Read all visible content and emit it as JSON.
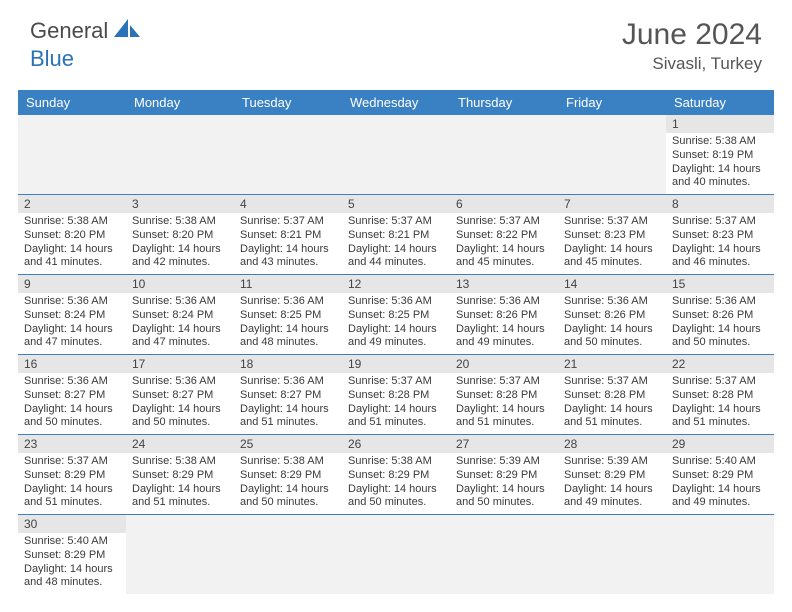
{
  "logo": {
    "text1": "General",
    "text2": "Blue"
  },
  "title": "June 2024",
  "location": "Sivasli, Turkey",
  "colors": {
    "header_bar": "#3a81c4",
    "daynum_bg": "#e6e6e6",
    "empty_bg": "#f2f2f2",
    "week_border": "#3a81c4",
    "logo_blue": "#2b72b8",
    "text": "#3a3a3a"
  },
  "daynames": [
    "Sunday",
    "Monday",
    "Tuesday",
    "Wednesday",
    "Thursday",
    "Friday",
    "Saturday"
  ],
  "weeks": [
    [
      {
        "empty": true
      },
      {
        "empty": true
      },
      {
        "empty": true
      },
      {
        "empty": true
      },
      {
        "empty": true
      },
      {
        "empty": true
      },
      {
        "num": "1",
        "sunrise": "Sunrise: 5:38 AM",
        "sunset": "Sunset: 8:19 PM",
        "day1": "Daylight: 14 hours",
        "day2": "and 40 minutes."
      }
    ],
    [
      {
        "num": "2",
        "sunrise": "Sunrise: 5:38 AM",
        "sunset": "Sunset: 8:20 PM",
        "day1": "Daylight: 14 hours",
        "day2": "and 41 minutes."
      },
      {
        "num": "3",
        "sunrise": "Sunrise: 5:38 AM",
        "sunset": "Sunset: 8:20 PM",
        "day1": "Daylight: 14 hours",
        "day2": "and 42 minutes."
      },
      {
        "num": "4",
        "sunrise": "Sunrise: 5:37 AM",
        "sunset": "Sunset: 8:21 PM",
        "day1": "Daylight: 14 hours",
        "day2": "and 43 minutes."
      },
      {
        "num": "5",
        "sunrise": "Sunrise: 5:37 AM",
        "sunset": "Sunset: 8:21 PM",
        "day1": "Daylight: 14 hours",
        "day2": "and 44 minutes."
      },
      {
        "num": "6",
        "sunrise": "Sunrise: 5:37 AM",
        "sunset": "Sunset: 8:22 PM",
        "day1": "Daylight: 14 hours",
        "day2": "and 45 minutes."
      },
      {
        "num": "7",
        "sunrise": "Sunrise: 5:37 AM",
        "sunset": "Sunset: 8:23 PM",
        "day1": "Daylight: 14 hours",
        "day2": "and 45 minutes."
      },
      {
        "num": "8",
        "sunrise": "Sunrise: 5:37 AM",
        "sunset": "Sunset: 8:23 PM",
        "day1": "Daylight: 14 hours",
        "day2": "and 46 minutes."
      }
    ],
    [
      {
        "num": "9",
        "sunrise": "Sunrise: 5:36 AM",
        "sunset": "Sunset: 8:24 PM",
        "day1": "Daylight: 14 hours",
        "day2": "and 47 minutes."
      },
      {
        "num": "10",
        "sunrise": "Sunrise: 5:36 AM",
        "sunset": "Sunset: 8:24 PM",
        "day1": "Daylight: 14 hours",
        "day2": "and 47 minutes."
      },
      {
        "num": "11",
        "sunrise": "Sunrise: 5:36 AM",
        "sunset": "Sunset: 8:25 PM",
        "day1": "Daylight: 14 hours",
        "day2": "and 48 minutes."
      },
      {
        "num": "12",
        "sunrise": "Sunrise: 5:36 AM",
        "sunset": "Sunset: 8:25 PM",
        "day1": "Daylight: 14 hours",
        "day2": "and 49 minutes."
      },
      {
        "num": "13",
        "sunrise": "Sunrise: 5:36 AM",
        "sunset": "Sunset: 8:26 PM",
        "day1": "Daylight: 14 hours",
        "day2": "and 49 minutes."
      },
      {
        "num": "14",
        "sunrise": "Sunrise: 5:36 AM",
        "sunset": "Sunset: 8:26 PM",
        "day1": "Daylight: 14 hours",
        "day2": "and 50 minutes."
      },
      {
        "num": "15",
        "sunrise": "Sunrise: 5:36 AM",
        "sunset": "Sunset: 8:26 PM",
        "day1": "Daylight: 14 hours",
        "day2": "and 50 minutes."
      }
    ],
    [
      {
        "num": "16",
        "sunrise": "Sunrise: 5:36 AM",
        "sunset": "Sunset: 8:27 PM",
        "day1": "Daylight: 14 hours",
        "day2": "and 50 minutes."
      },
      {
        "num": "17",
        "sunrise": "Sunrise: 5:36 AM",
        "sunset": "Sunset: 8:27 PM",
        "day1": "Daylight: 14 hours",
        "day2": "and 50 minutes."
      },
      {
        "num": "18",
        "sunrise": "Sunrise: 5:36 AM",
        "sunset": "Sunset: 8:27 PM",
        "day1": "Daylight: 14 hours",
        "day2": "and 51 minutes."
      },
      {
        "num": "19",
        "sunrise": "Sunrise: 5:37 AM",
        "sunset": "Sunset: 8:28 PM",
        "day1": "Daylight: 14 hours",
        "day2": "and 51 minutes."
      },
      {
        "num": "20",
        "sunrise": "Sunrise: 5:37 AM",
        "sunset": "Sunset: 8:28 PM",
        "day1": "Daylight: 14 hours",
        "day2": "and 51 minutes."
      },
      {
        "num": "21",
        "sunrise": "Sunrise: 5:37 AM",
        "sunset": "Sunset: 8:28 PM",
        "day1": "Daylight: 14 hours",
        "day2": "and 51 minutes."
      },
      {
        "num": "22",
        "sunrise": "Sunrise: 5:37 AM",
        "sunset": "Sunset: 8:28 PM",
        "day1": "Daylight: 14 hours",
        "day2": "and 51 minutes."
      }
    ],
    [
      {
        "num": "23",
        "sunrise": "Sunrise: 5:37 AM",
        "sunset": "Sunset: 8:29 PM",
        "day1": "Daylight: 14 hours",
        "day2": "and 51 minutes."
      },
      {
        "num": "24",
        "sunrise": "Sunrise: 5:38 AM",
        "sunset": "Sunset: 8:29 PM",
        "day1": "Daylight: 14 hours",
        "day2": "and 51 minutes."
      },
      {
        "num": "25",
        "sunrise": "Sunrise: 5:38 AM",
        "sunset": "Sunset: 8:29 PM",
        "day1": "Daylight: 14 hours",
        "day2": "and 50 minutes."
      },
      {
        "num": "26",
        "sunrise": "Sunrise: 5:38 AM",
        "sunset": "Sunset: 8:29 PM",
        "day1": "Daylight: 14 hours",
        "day2": "and 50 minutes."
      },
      {
        "num": "27",
        "sunrise": "Sunrise: 5:39 AM",
        "sunset": "Sunset: 8:29 PM",
        "day1": "Daylight: 14 hours",
        "day2": "and 50 minutes."
      },
      {
        "num": "28",
        "sunrise": "Sunrise: 5:39 AM",
        "sunset": "Sunset: 8:29 PM",
        "day1": "Daylight: 14 hours",
        "day2": "and 49 minutes."
      },
      {
        "num": "29",
        "sunrise": "Sunrise: 5:40 AM",
        "sunset": "Sunset: 8:29 PM",
        "day1": "Daylight: 14 hours",
        "day2": "and 49 minutes."
      }
    ],
    [
      {
        "num": "30",
        "sunrise": "Sunrise: 5:40 AM",
        "sunset": "Sunset: 8:29 PM",
        "day1": "Daylight: 14 hours",
        "day2": "and 48 minutes."
      },
      {
        "empty": true
      },
      {
        "empty": true
      },
      {
        "empty": true
      },
      {
        "empty": true
      },
      {
        "empty": true
      },
      {
        "empty": true
      }
    ]
  ]
}
